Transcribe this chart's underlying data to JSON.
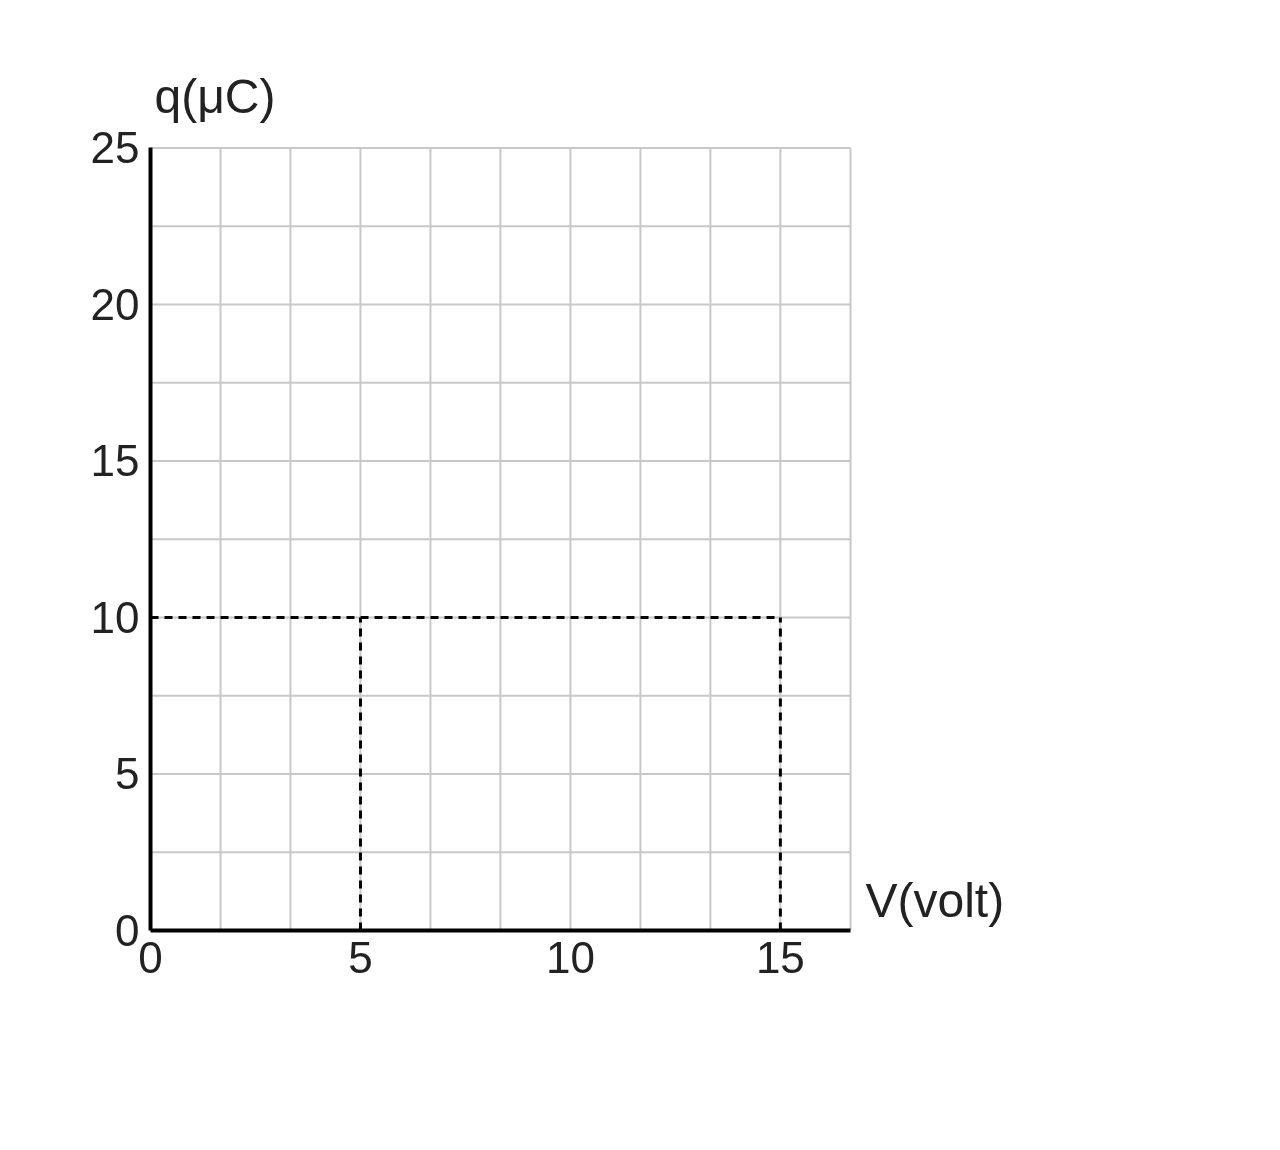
{
  "chart_data": {
    "type": "line",
    "xlabel": "V(volt)",
    "ylabel": "q(μC)",
    "series": [
      {
        "color": "#000000",
        "x": [
          0,
          15
        ],
        "values": [
          10,
          10
        ]
      },
      {
        "color": "#000000",
        "x": [
          5,
          5
        ],
        "values": [
          0,
          10
        ]
      },
      {
        "color": "#000000",
        "x": [
          15,
          15
        ],
        "values": [
          0,
          10
        ]
      }
    ],
    "line_style": "dashed",
    "marker": "none",
    "grid": true,
    "xlim": [
      0,
      16.67
    ],
    "ylim": [
      0,
      25
    ],
    "xticks": [
      0,
      {
        "value": 1.667,
        "label": null
      },
      {
        "value": 3.333,
        "label": null
      },
      5,
      {
        "value": 6.667,
        "label": null
      },
      {
        "value": 8.333,
        "label": null
      },
      10,
      {
        "value": 11.667,
        "label": null
      },
      {
        "value": 13.333,
        "label": null
      },
      15,
      {
        "value": 16.67,
        "label": null
      }
    ],
    "yticks": [
      0,
      {
        "value": 2.5,
        "label": null
      },
      5,
      {
        "value": 7.5,
        "label": null
      },
      10,
      {
        "value": 12.5,
        "label": null
      },
      15,
      {
        "value": 17.5,
        "label": null
      },
      20,
      {
        "value": 22.5,
        "label": null
      },
      25
    ]
  }
}
